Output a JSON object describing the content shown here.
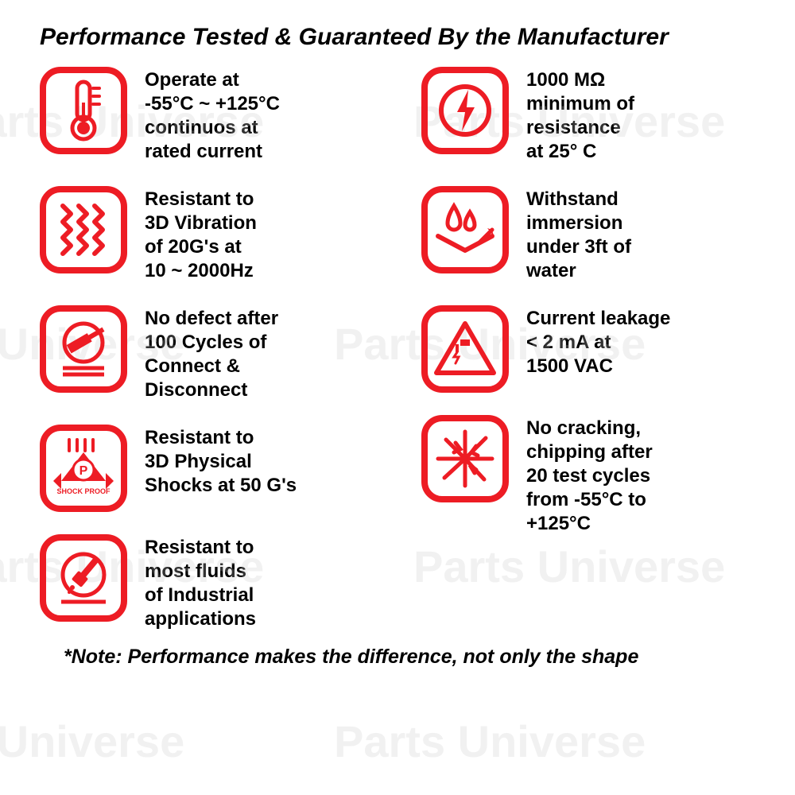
{
  "colors": {
    "accent": "#ed1c24",
    "text": "#000000",
    "bg": "#ffffff",
    "watermark": "rgba(200,200,200,0.25)"
  },
  "heading": "Performance Tested & Guaranteed By the Manufacturer",
  "footnote": "*Note: Performance makes the difference, not only the shape",
  "watermark_text": "Parts Universe",
  "left": [
    {
      "icon": "thermometer",
      "text": "Operate at\n-55°C ~ +125°C\ncontinuos at\nrated current"
    },
    {
      "icon": "vibration",
      "text": "Resistant to\n3D Vibration\nof 20G's at\n10 ~ 2000Hz"
    },
    {
      "icon": "hammer",
      "text": "No defect after\n100 Cycles of\nConnect &\nDisconnect"
    },
    {
      "icon": "shockproof",
      "text": "Resistant to\n3D Physical\nShocks at 50 G's"
    },
    {
      "icon": "fluids",
      "text": "Resistant to\nmost fluids\nof Industrial\napplications"
    }
  ],
  "right": [
    {
      "icon": "lightning",
      "text": "1000 MΩ\nminimum of\nresistance\nat 25° C"
    },
    {
      "icon": "immersion",
      "text": "Withstand\nimmersion\nunder 3ft of\nwater"
    },
    {
      "icon": "leakage",
      "text": "Current leakage\n< 2 mA at\n1500 VAC"
    },
    {
      "icon": "crack",
      "text": "No cracking,\nchipping after\n20 test cycles\nfrom -55°C to\n+125°C"
    }
  ]
}
